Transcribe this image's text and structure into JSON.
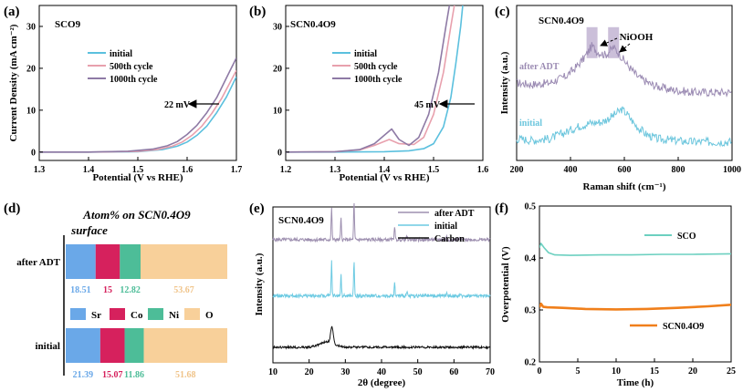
{
  "colors": {
    "initial": "#5bc0de",
    "c500": "#e8a0ad",
    "c1000": "#8e7aa5",
    "raman_adt": "#9b8bb3",
    "raman_initial": "#6cc6dd",
    "xrd_adt": "#9e90b0",
    "xrd_initial": "#6ccae2",
    "carbon": "#111111",
    "sco": "#6cd0c0",
    "scn": "#f07f1b",
    "sr": "#6aa8e8",
    "co": "#d6215d",
    "ni": "#4dbd98",
    "o": "#f8d09a"
  },
  "chart_data": [
    {
      "type": "line",
      "panel": "(a)",
      "title": "SCO9",
      "xlabel": "Potential (V vs RHE)",
      "ylabel": "Current Density (mA cm⁻²)",
      "xlim": [
        1.3,
        1.7
      ],
      "ylim": [
        -2,
        35
      ],
      "xticks": [
        "1.3",
        "1.4",
        "1.5",
        "1.6",
        "1.7"
      ],
      "yticks": [
        "0",
        "10",
        "20",
        "30"
      ],
      "xtick_values": [
        1.3,
        1.4,
        1.5,
        1.6,
        1.7
      ],
      "ytick_values": [
        0,
        10,
        20,
        30
      ],
      "legend": [
        "initial",
        "500th cycle",
        "1000th cycle"
      ],
      "annotation": "22 mV",
      "series": [
        {
          "name": "initial",
          "x": [
            1.3,
            1.4,
            1.5,
            1.55,
            1.58,
            1.6,
            1.62,
            1.64,
            1.66,
            1.68,
            1.7
          ],
          "y": [
            0,
            0,
            0.1,
            0.6,
            1.4,
            2.4,
            4.0,
            6.2,
            9.4,
            13.2,
            18.0
          ]
        },
        {
          "name": "500th cycle",
          "x": [
            1.3,
            1.4,
            1.5,
            1.54,
            1.57,
            1.59,
            1.61,
            1.63,
            1.65,
            1.67,
            1.7
          ],
          "y": [
            0,
            0,
            0.15,
            0.6,
            1.4,
            2.4,
            4.0,
            6.2,
            9.2,
            12.8,
            19.5
          ]
        },
        {
          "name": "1000th cycle",
          "x": [
            1.3,
            1.4,
            1.48,
            1.53,
            1.56,
            1.58,
            1.6,
            1.62,
            1.64,
            1.66,
            1.7
          ],
          "y": [
            0,
            0,
            0.2,
            0.7,
            1.5,
            2.5,
            4.2,
            6.4,
            9.4,
            13.0,
            22.5
          ]
        }
      ]
    },
    {
      "type": "line",
      "panel": "(b)",
      "title": "SCN0.4O9",
      "xlabel": "Potential (V vs RHE)",
      "ylabel": "",
      "xlim": [
        1.2,
        1.6
      ],
      "ylim": [
        -2,
        35
      ],
      "xticks": [
        "1.2",
        "1.3",
        "1.4",
        "1.5",
        "1.6"
      ],
      "yticks": [
        "0",
        "10",
        "20",
        "30"
      ],
      "xtick_values": [
        1.2,
        1.3,
        1.4,
        1.5,
        1.6
      ],
      "ytick_values": [
        0,
        10,
        20,
        30
      ],
      "legend": [
        "initial",
        "500th cycle",
        "1000th cycle"
      ],
      "annotation": "45 mV",
      "series": [
        {
          "name": "initial",
          "x": [
            1.2,
            1.3,
            1.4,
            1.45,
            1.48,
            1.5,
            1.52,
            1.535,
            1.545,
            1.555,
            1.56
          ],
          "y": [
            0,
            0,
            0.1,
            0.3,
            0.8,
            2,
            6,
            13,
            21,
            30,
            36
          ]
        },
        {
          "name": "500th cycle",
          "x": [
            1.2,
            1.3,
            1.35,
            1.38,
            1.41,
            1.43,
            1.46,
            1.48,
            1.5,
            1.52,
            1.535,
            1.545
          ],
          "y": [
            0,
            0.1,
            0.5,
            1.6,
            3.0,
            2.0,
            1.8,
            3.5,
            9,
            19,
            30,
            37
          ]
        },
        {
          "name": "1000th cycle",
          "x": [
            1.2,
            1.3,
            1.35,
            1.38,
            1.4,
            1.415,
            1.43,
            1.45,
            1.47,
            1.49,
            1.51,
            1.525,
            1.535
          ],
          "y": [
            0,
            0.1,
            0.6,
            2.0,
            4.0,
            5.5,
            3.0,
            1.6,
            3.5,
            9,
            19,
            30,
            37
          ]
        }
      ]
    },
    {
      "type": "line",
      "panel": "(c)",
      "title": "SCN0.4O9",
      "xlabel": "Raman shift (cm⁻¹)",
      "ylabel": "Intensity (a.u.)",
      "xlim": [
        200,
        1000
      ],
      "ylim": [
        0,
        10
      ],
      "xticks": [
        "200",
        "400",
        "600",
        "800",
        "1000"
      ],
      "xtick_values": [
        200,
        400,
        600,
        800,
        1000
      ],
      "labels": [
        "after ADT",
        "initial"
      ],
      "annotation": "NiOOH",
      "highlight_bands": [
        480,
        560
      ],
      "series": [
        {
          "name": "after ADT",
          "x": [
            200,
            260,
            320,
            380,
            420,
            450,
            480,
            500,
            530,
            560,
            580,
            610,
            650,
            700,
            760,
            850,
            1000
          ],
          "y": [
            5.0,
            4.9,
            5.0,
            5.4,
            6.0,
            6.6,
            7.4,
            7.0,
            6.8,
            7.3,
            6.9,
            6.2,
            5.4,
            4.9,
            4.6,
            4.4,
            4.4
          ]
        },
        {
          "name": "initial",
          "x": [
            200,
            260,
            320,
            380,
            430,
            470,
            520,
            560,
            590,
            610,
            640,
            680,
            720,
            780,
            850,
            1000
          ],
          "y": [
            1.4,
            1.3,
            1.4,
            1.8,
            2.2,
            2.4,
            2.5,
            2.9,
            3.3,
            3.0,
            2.3,
            1.7,
            1.4,
            1.3,
            1.2,
            1.2
          ]
        }
      ]
    },
    {
      "type": "bar",
      "panel": "(d)",
      "title": "Atom% on SCN0.4O9",
      "title2": "surface",
      "stacked": true,
      "orientation": "horizontal",
      "categories": [
        "after ADT",
        "initial"
      ],
      "legend": [
        "Sr",
        "Co",
        "Ni",
        "O"
      ],
      "series": [
        {
          "name": "Sr",
          "values": [
            18.51,
            21.39
          ]
        },
        {
          "name": "Co",
          "values": [
            15,
            15.07
          ]
        },
        {
          "name": "Ni",
          "values": [
            12.82,
            11.86
          ]
        },
        {
          "name": "O",
          "values": [
            53.67,
            51.68
          ]
        }
      ],
      "value_labels": [
        [
          "18.51",
          "15",
          "12.82",
          "53.67"
        ],
        [
          "21.39",
          "15.07",
          "11.86",
          "51.68"
        ]
      ]
    },
    {
      "type": "line",
      "panel": "(e)",
      "title": "SCN0.4O9",
      "xlabel": "2θ (degree)",
      "ylabel": "Intensity (a.u.)",
      "xlim": [
        10,
        70
      ],
      "ylim": [
        0,
        10
      ],
      "xticks": [
        "10",
        "20",
        "30",
        "40",
        "50",
        "60",
        "70"
      ],
      "xtick_values": [
        10,
        20,
        30,
        40,
        50,
        60,
        70
      ],
      "legend": [
        "after ADT",
        "initial",
        "Carbon"
      ],
      "series": [
        {
          "name": "after ADT",
          "baseline": 7.9,
          "peaks": [
            [
              26.2,
              2.1
            ],
            [
              28.8,
              1.4
            ],
            [
              32.4,
              2.4
            ],
            [
              43.6,
              0.9
            ],
            [
              47,
              0.2
            ],
            [
              58,
              0.2
            ]
          ]
        },
        {
          "name": "initial",
          "baseline": 4.3,
          "peaks": [
            [
              26.2,
              2.2
            ],
            [
              28.8,
              1.4
            ],
            [
              32.4,
              2.2
            ],
            [
              43.6,
              0.8
            ],
            [
              47,
              0.2
            ],
            [
              58,
              0.2
            ]
          ]
        },
        {
          "name": "Carbon",
          "baseline": 1.0,
          "peaks": [
            [
              26.3,
              1.0
            ]
          ]
        }
      ]
    },
    {
      "type": "line",
      "panel": "(f)",
      "xlabel": "Time (h)",
      "ylabel": "Overpotential (V)",
      "xlim": [
        0,
        25
      ],
      "ylim": [
        0.2,
        0.5
      ],
      "xticks": [
        "0",
        "5",
        "10",
        "15",
        "20",
        "25"
      ],
      "yticks": [
        "0.2",
        "0.3",
        "0.4",
        "0.5"
      ],
      "xtick_values": [
        0,
        5,
        10,
        15,
        20,
        25
      ],
      "ytick_values": [
        0.2,
        0.3,
        0.4,
        0.5
      ],
      "legend": [
        "SCO",
        "SCN0.4O9"
      ],
      "series": [
        {
          "name": "SCO",
          "x": [
            0,
            0.2,
            0.6,
            1.2,
            2,
            4,
            8,
            12,
            16,
            20,
            25
          ],
          "y": [
            0.42,
            0.428,
            0.42,
            0.41,
            0.406,
            0.405,
            0.406,
            0.406,
            0.407,
            0.407,
            0.408
          ]
        },
        {
          "name": "SCN0.4O9",
          "x": [
            0,
            0.2,
            0.5,
            1,
            3,
            6,
            10,
            14,
            18,
            22,
            25
          ],
          "y": [
            0.305,
            0.312,
            0.306,
            0.305,
            0.304,
            0.302,
            0.301,
            0.302,
            0.304,
            0.307,
            0.31
          ]
        }
      ]
    }
  ]
}
